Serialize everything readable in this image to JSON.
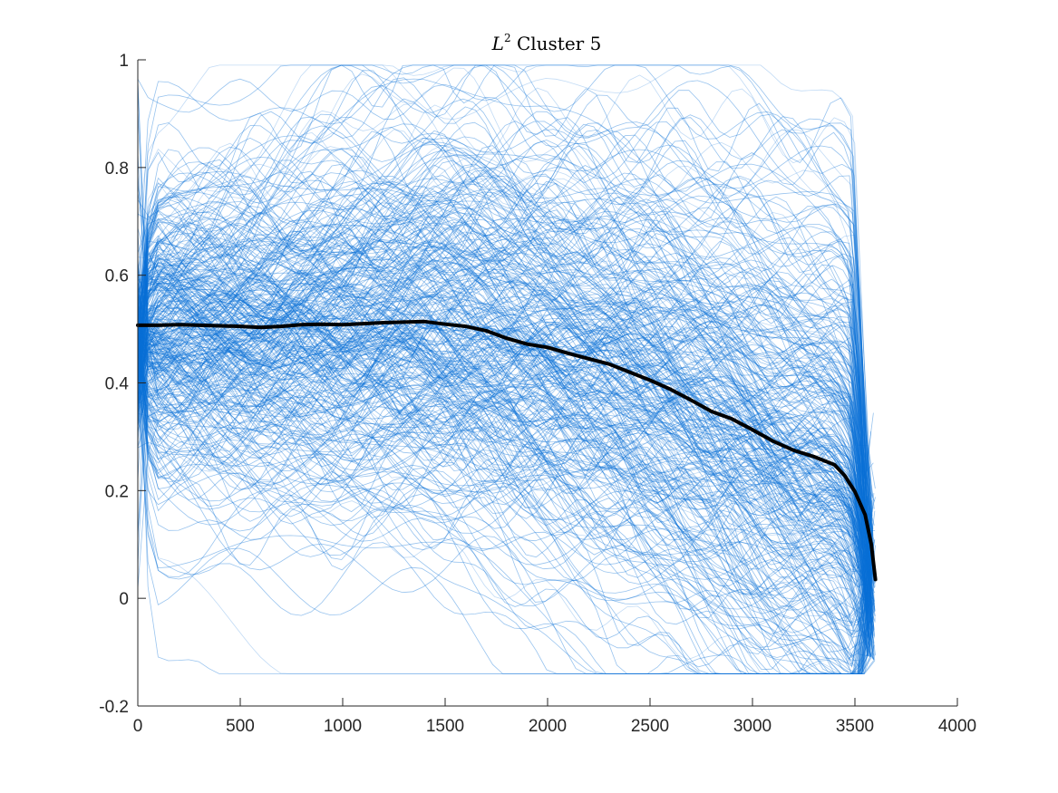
{
  "chart_data": {
    "type": "line",
    "title": "L² Cluster 5",
    "title_parts": {
      "var": "L",
      "sup": "2",
      "rest": " Cluster 5"
    },
    "xlabel": "",
    "ylabel": "",
    "xlim": [
      0,
      4000
    ],
    "ylim": [
      -0.2,
      1
    ],
    "x_ticks": [
      0,
      500,
      1000,
      1500,
      2000,
      2500,
      3000,
      3500,
      4000
    ],
    "y_ticks": [
      -0.2,
      0,
      0.2,
      0.4,
      0.6,
      0.8,
      1
    ],
    "x_tick_labels": [
      "0",
      "500",
      "1000",
      "1500",
      "2000",
      "2500",
      "3000",
      "3500",
      "4000"
    ],
    "y_tick_labels": [
      "-0.2",
      "0",
      "0.2",
      "0.4",
      "0.6",
      "0.8",
      "1"
    ],
    "grid": false,
    "legend": "none",
    "colors": {
      "individual": "#0a6fd6",
      "mean": "#000000",
      "axis": "#262626"
    },
    "series": [
      {
        "role": "mean",
        "x": [
          0,
          100,
          200,
          300,
          400,
          500,
          600,
          700,
          800,
          900,
          1000,
          1100,
          1200,
          1300,
          1400,
          1500,
          1600,
          1700,
          1800,
          1900,
          2000,
          2100,
          2200,
          2300,
          2400,
          2500,
          2600,
          2700,
          2800,
          2900,
          3000,
          3100,
          3200,
          3300,
          3400,
          3450,
          3500,
          3550,
          3580,
          3600
        ],
        "y": [
          0.507,
          0.507,
          0.508,
          0.507,
          0.506,
          0.505,
          0.503,
          0.505,
          0.508,
          0.509,
          0.508,
          0.51,
          0.512,
          0.513,
          0.514,
          0.509,
          0.505,
          0.497,
          0.483,
          0.472,
          0.466,
          0.455,
          0.445,
          0.435,
          0.42,
          0.405,
          0.388,
          0.368,
          0.347,
          0.333,
          0.313,
          0.292,
          0.275,
          0.263,
          0.248,
          0.228,
          0.198,
          0.155,
          0.1,
          0.035
        ]
      }
    ],
    "individual_curves": {
      "count_rendered": 380,
      "description": "dense bundle of thin semi-transparent curves",
      "x_range": [
        0,
        3600
      ],
      "y_spread_range": [
        -0.14,
        0.99
      ]
    }
  }
}
